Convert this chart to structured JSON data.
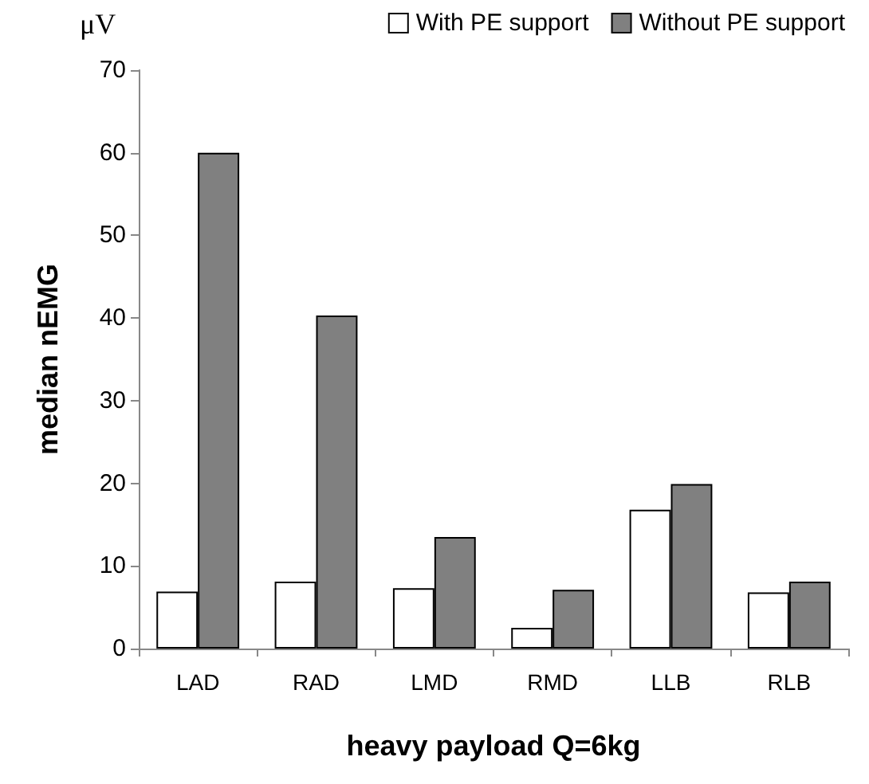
{
  "chart_data": {
    "type": "bar",
    "xlabel": "heavy payload Q=6kg",
    "ylabel": "median nEMG",
    "annotations": [
      "μV"
    ],
    "categories": [
      "LAD",
      "RAD",
      "LMD",
      "RMD",
      "LLB",
      "RLB"
    ],
    "series": [
      {
        "name": "With PE support",
        "color": "#ffffff",
        "values": [
          6.9,
          8.1,
          7.3,
          2.5,
          16.8,
          6.8
        ]
      },
      {
        "name": "Without PE support",
        "color": "#808080",
        "values": [
          60,
          40.3,
          13.5,
          7.1,
          19.9,
          8.1
        ]
      }
    ],
    "ylim": [
      0,
      70
    ],
    "yticks": [
      0,
      10,
      20,
      30,
      40,
      50,
      60,
      70
    ],
    "grid": false,
    "legend": "top right"
  }
}
